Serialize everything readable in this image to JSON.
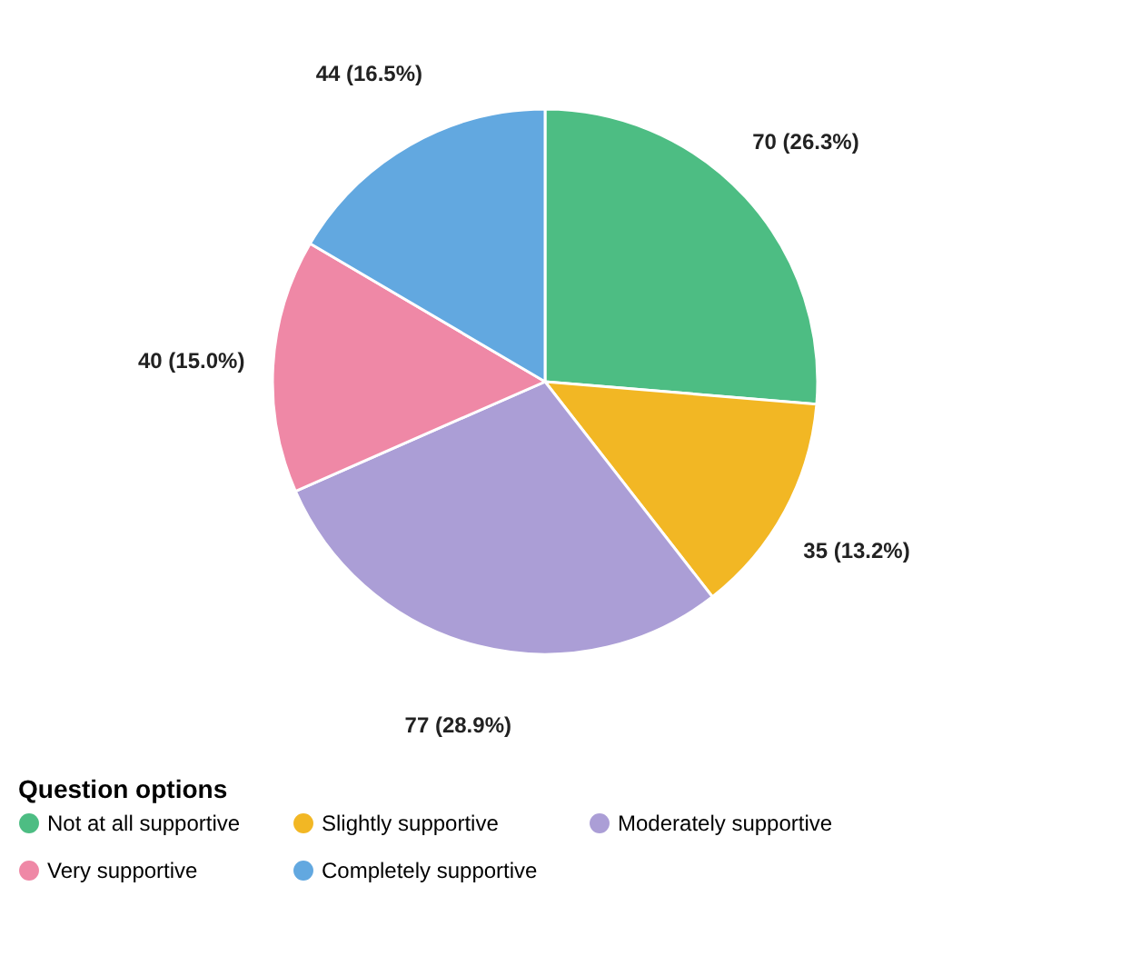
{
  "chart_data": {
    "type": "pie",
    "legend_title": "Question options",
    "legend": "bottom left",
    "categories": [
      "Not at all supportive",
      "Slightly supportive",
      "Moderately supportive",
      "Very supportive",
      "Completely supportive"
    ],
    "values": [
      70,
      35,
      77,
      40,
      44
    ],
    "value_labels": [
      "70 (26.3%)",
      "35 (13.2%)",
      "77 (28.9%)",
      "40 (15.0%)",
      "44 (16.5%)"
    ],
    "colors": [
      "#4dbd83",
      "#f2b724",
      "#ab9ed6",
      "#ef88a6",
      "#62a8e0"
    ]
  }
}
